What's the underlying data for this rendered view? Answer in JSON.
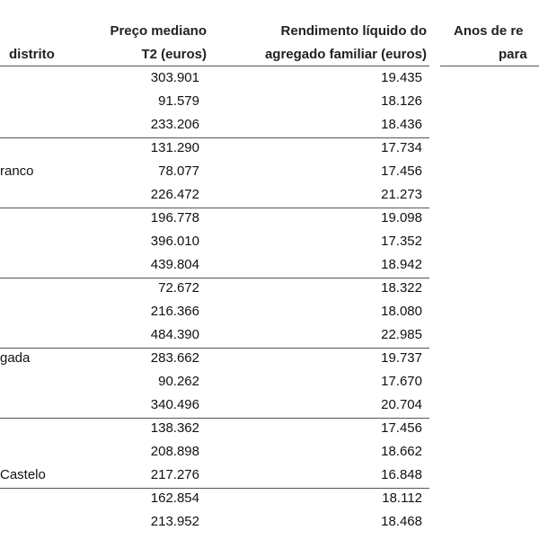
{
  "header": {
    "region": "distrito",
    "price": [
      "Preço mediano",
      "T2 (euros)"
    ],
    "income": [
      "Rendimento líquido do",
      "agregado familiar (euros)"
    ],
    "years": [
      "Anos de re",
      "para"
    ]
  },
  "rows": [
    {
      "price": "303.901",
      "income": "19.435"
    },
    {
      "price": "91.579",
      "income": "18.126"
    },
    {
      "price": "233.206",
      "income": "18.436"
    },
    {
      "price": "131.290",
      "income": "17.734"
    },
    {
      "region": "ranco",
      "price": "78.077",
      "income": "17.456"
    },
    {
      "price": "226.472",
      "income": "21.273"
    },
    {
      "price": "196.778",
      "income": "19.098"
    },
    {
      "price": "396.010",
      "income": "17.352"
    },
    {
      "price": "439.804",
      "income": "18.942"
    },
    {
      "price": "72.672",
      "income": "18.322"
    },
    {
      "price": "216.366",
      "income": "18.080"
    },
    {
      "price": "484.390",
      "income": "22.985"
    },
    {
      "region": "gada",
      "price": "283.662",
      "income": "19.737"
    },
    {
      "price": "90.262",
      "income": "17.670"
    },
    {
      "price": "340.496",
      "income": "20.704"
    },
    {
      "price": "138.362",
      "income": "17.456"
    },
    {
      "price": "208.898",
      "income": "18.662"
    },
    {
      "region": "Castelo",
      "price": "217.276",
      "income": "16.848"
    },
    {
      "price": "162.854",
      "income": "18.112"
    },
    {
      "price": "213.952",
      "income": "18.468"
    }
  ]
}
